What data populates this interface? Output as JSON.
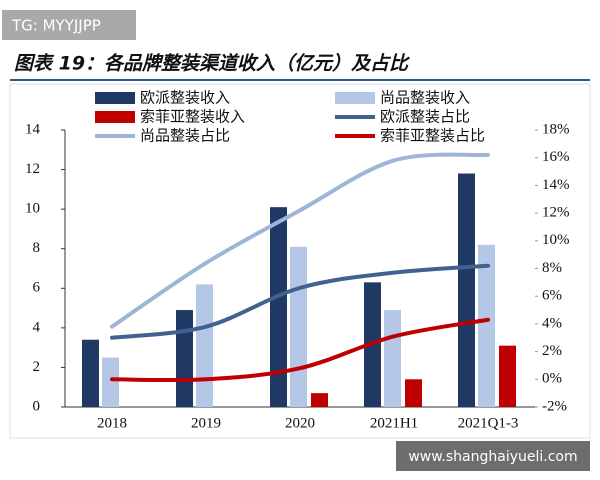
{
  "chart_data": {
    "type": "bar",
    "title": "图表 19：各品牌整装渠道收入（亿元）及占比",
    "categories": [
      "2018",
      "2019",
      "2020",
      "2021H1",
      "2021Q1-3"
    ],
    "series": [
      {
        "name": "欧派整装收入",
        "type": "bar",
        "color": "#1f3864",
        "values": [
          3.4,
          4.9,
          10.1,
          6.3,
          11.8
        ]
      },
      {
        "name": "尚品整装收入",
        "type": "bar",
        "color": "#b4c7e7",
        "values": [
          2.5,
          6.2,
          8.1,
          4.9,
          8.2
        ]
      },
      {
        "name": "索菲亚整装收入",
        "type": "bar",
        "color": "#c00000",
        "values": [
          null,
          null,
          0.7,
          1.4,
          3.1
        ]
      },
      {
        "name": "欧派整装占比",
        "type": "line",
        "axis": "y2",
        "color": "#41618f",
        "values": [
          3.0,
          3.8,
          6.6,
          7.7,
          8.2
        ]
      },
      {
        "name": "尚品整装占比",
        "type": "line",
        "axis": "y2",
        "color": "#9fb5d8",
        "values": [
          3.8,
          8.4,
          12.2,
          15.8,
          16.2
        ]
      },
      {
        "name": "索菲亚整装占比",
        "type": "line",
        "axis": "y2",
        "color": "#c00000",
        "values": [
          0,
          0,
          0.8,
          3.1,
          4.3
        ]
      }
    ],
    "ylim": [
      0,
      14
    ],
    "yticks": [
      0,
      2,
      4,
      6,
      8,
      10,
      12,
      14
    ],
    "y2lim": [
      -2,
      18
    ],
    "y2ticks": [
      {
        "value": -2,
        "label": "-2%"
      },
      {
        "value": 0,
        "label": "0%"
      },
      {
        "value": 2,
        "label": "2%"
      },
      {
        "value": 4,
        "label": "4%"
      },
      {
        "value": 6,
        "label": "6%"
      },
      {
        "value": 8,
        "label": "8%"
      },
      {
        "value": 10,
        "label": "10%"
      },
      {
        "value": 12,
        "label": "12%"
      },
      {
        "value": 14,
        "label": "14%"
      },
      {
        "value": 16,
        "label": "16%"
      },
      {
        "value": 18,
        "label": "18%"
      }
    ],
    "grid": false
  },
  "watermark_top": "TG: MYYJJPP",
  "watermark_bottom": "www.shanghaiyueli.com"
}
